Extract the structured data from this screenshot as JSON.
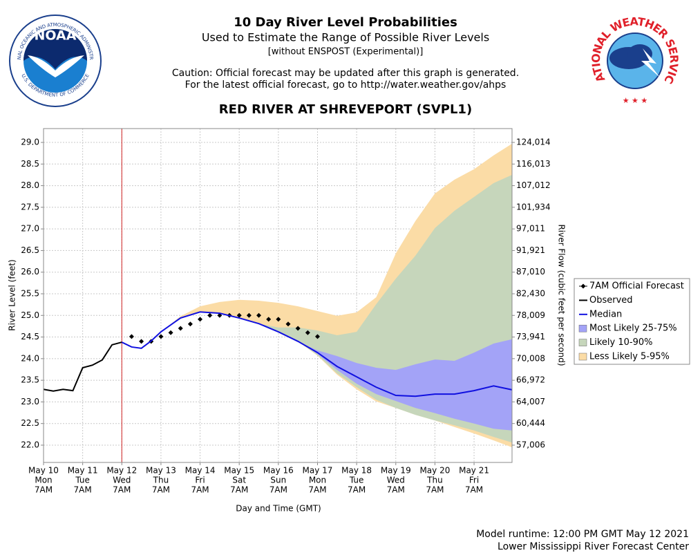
{
  "header": {
    "title": "10 Day River Level Probabilities",
    "subtitle": "Used to Estimate the Range of Possible River Levels",
    "note": "[without ENSPOST (Experimental)]",
    "caution": [
      "Caution: Official forecast may be updated after this graph is generated.",
      "For the latest official forecast, go to http://water.weather.gov/ahps"
    ]
  },
  "logos": {
    "noaa": "NOAA",
    "noaa_ring_top": "NATIONAL OCEANIC AND ATMOSPHERIC ADMINISTRATION",
    "noaa_ring_bottom": "U.S. DEPARTMENT OF COMMERCE",
    "nws": "NATIONAL WEATHER SERVICE"
  },
  "footer": [
    "Model runtime: 12:00 PM GMT May 12 2021",
    "Lower Mississippi River Forecast Center"
  ],
  "chart_data": {
    "type": "line",
    "title": "RED RIVER AT SHREVEPORT (SVPL1)",
    "xlabel": "Day and Time (GMT)",
    "ylabel": "River Level (feet)",
    "y2label": "River Flow (cubic feet per second)",
    "xlim": [
      0,
      11.97
    ],
    "ylim": [
      21.6,
      29.32
    ],
    "grid": true,
    "xticks": [
      0,
      1,
      2,
      3,
      4,
      5,
      6,
      7,
      8,
      9,
      10,
      11
    ],
    "xtick_labels": [
      [
        "May 10",
        "Mon",
        "7AM"
      ],
      [
        "May 11",
        "Tue",
        "7AM"
      ],
      [
        "May 12",
        "Wed",
        "7AM"
      ],
      [
        "May 13",
        "Thu",
        "7AM"
      ],
      [
        "May 14",
        "Fri",
        "7AM"
      ],
      [
        "May 15",
        "Sat",
        "7AM"
      ],
      [
        "May 16",
        "Sun",
        "7AM"
      ],
      [
        "May 17",
        "Mon",
        "7AM"
      ],
      [
        "May 18",
        "Tue",
        "7AM"
      ],
      [
        "May 19",
        "Wed",
        "7AM"
      ],
      [
        "May 20",
        "Thu",
        "7AM"
      ],
      [
        "May 21",
        "Fri",
        "7AM"
      ]
    ],
    "yticks": [
      {
        "value": 22,
        "label": "22.0"
      },
      22.5,
      {
        "value": 23,
        "label": "23.0"
      },
      23.5,
      {
        "value": 24,
        "label": "24.0"
      },
      24.5,
      {
        "value": 25,
        "label": "25.0"
      },
      25.5,
      {
        "value": 26,
        "label": "26.0"
      },
      26.5,
      {
        "value": 27,
        "label": "27.0"
      },
      27.5,
      {
        "value": 28,
        "label": "28.0"
      },
      28.5,
      {
        "value": 29,
        "label": "29.0"
      }
    ],
    "y2tick_stages": [
      22,
      22.5,
      23,
      23.5,
      24,
      24.5,
      25,
      25.5,
      26,
      26.5,
      27,
      27.5,
      28,
      28.5,
      29
    ],
    "y2ticks": [
      {
        "value": 57006,
        "label": "57,006"
      },
      {
        "value": 60444,
        "label": "60,444"
      },
      {
        "value": 64007,
        "label": "64,007"
      },
      {
        "value": 66972,
        "label": "66,972"
      },
      {
        "value": 70008,
        "label": "70,008"
      },
      {
        "value": 73941,
        "label": "73,941"
      },
      {
        "value": 78009,
        "label": "78,009"
      },
      {
        "value": 82430,
        "label": "82,430"
      },
      {
        "value": 87010,
        "label": "87,010"
      },
      {
        "value": 91921,
        "label": "91,921"
      },
      {
        "value": 97011,
        "label": "97,011"
      },
      {
        "value": 101934,
        "label": "101,934"
      },
      {
        "value": 107012,
        "label": "107,012"
      },
      {
        "value": 116013,
        "label": "116,013"
      },
      {
        "value": 124014,
        "label": "124,014"
      }
    ],
    "now_line": {
      "x": 2,
      "color": "#d02020"
    },
    "series": [
      {
        "name": "7AM Official Forecast",
        "color": "#000000",
        "marker": "diamond",
        "x": [
          2.25,
          2.5,
          2.75,
          3,
          3.25,
          3.5,
          3.75,
          4,
          4.25,
          4.5,
          4.75,
          5,
          5.25,
          5.5,
          5.75,
          6,
          6.25,
          6.5,
          6.75,
          7
        ],
        "values": [
          24.51,
          24.4,
          24.4,
          24.51,
          24.6,
          24.7,
          24.8,
          24.91,
          25.0,
          25.0,
          25.0,
          25.0,
          25.0,
          25.0,
          24.91,
          24.91,
          24.8,
          24.7,
          24.6,
          24.51
        ]
      },
      {
        "name": "Observed",
        "color": "#000000",
        "x": [
          0,
          0.25,
          0.5,
          0.75,
          1,
          1.25,
          1.5,
          1.75,
          2
        ],
        "values": [
          23.29,
          23.25,
          23.29,
          23.26,
          23.79,
          23.85,
          23.97,
          24.32,
          24.38
        ]
      },
      {
        "name": "Median",
        "color": "#1010e0",
        "x": [
          2,
          2.25,
          2.5,
          2.75,
          3,
          3.5,
          4,
          4.5,
          5,
          5.5,
          6,
          6.5,
          7,
          7.5,
          8,
          8.5,
          9,
          9.5,
          10,
          10.5,
          11,
          11.5,
          11.97
        ],
        "values": [
          24.38,
          24.27,
          24.24,
          24.41,
          24.62,
          24.94,
          25.08,
          25.05,
          24.94,
          24.81,
          24.62,
          24.4,
          24.14,
          23.82,
          23.58,
          23.34,
          23.15,
          23.13,
          23.18,
          23.18,
          23.26,
          23.37,
          23.28
        ]
      }
    ],
    "band_x": [
      2,
      2.25,
      2.5,
      2.75,
      3,
      3.5,
      4,
      4.5,
      5,
      5.5,
      6,
      6.5,
      7,
      7.5,
      8,
      8.5,
      9,
      9.5,
      10,
      10.5,
      11,
      11.5,
      11.97
    ],
    "bands": [
      {
        "name": "Most Likely 25-75%",
        "color": "#a3a3f7",
        "upper": [
          24.38,
          24.27,
          24.24,
          24.41,
          24.62,
          24.94,
          25.08,
          25.05,
          24.94,
          24.81,
          24.62,
          24.4,
          24.19,
          24.06,
          23.9,
          23.79,
          23.74,
          23.87,
          23.98,
          23.95,
          24.14,
          24.35,
          24.45
        ],
        "lower": [
          24.38,
          24.27,
          24.24,
          24.41,
          24.62,
          24.94,
          25.08,
          25.05,
          24.94,
          24.81,
          24.62,
          24.4,
          24.11,
          23.74,
          23.42,
          23.18,
          23.02,
          22.86,
          22.74,
          22.61,
          22.5,
          22.38,
          22.34
        ]
      },
      {
        "name": "Likely 10-90%",
        "color": "#c6d6bb",
        "upper": [
          24.38,
          24.27,
          24.24,
          24.41,
          24.62,
          24.94,
          25.08,
          25.05,
          24.94,
          24.81,
          24.72,
          24.72,
          24.65,
          24.54,
          24.62,
          25.26,
          25.85,
          26.38,
          27.02,
          27.42,
          27.74,
          28.06,
          28.25
        ],
        "lower": [
          24.38,
          24.27,
          24.24,
          24.41,
          24.62,
          24.94,
          25.08,
          25.05,
          24.94,
          24.81,
          24.62,
          24.4,
          24.08,
          23.66,
          23.34,
          23.05,
          22.86,
          22.7,
          22.57,
          22.46,
          22.34,
          22.19,
          22.06
        ]
      },
      {
        "name": "Less Likely 5-95%",
        "color": "#fbdca6",
        "upper": [
          24.38,
          24.27,
          24.24,
          24.41,
          24.62,
          24.98,
          25.21,
          25.31,
          25.36,
          25.34,
          25.29,
          25.21,
          25.1,
          24.99,
          25.07,
          25.42,
          26.43,
          27.18,
          27.82,
          28.14,
          28.38,
          28.7,
          28.97
        ],
        "lower": [
          24.38,
          24.27,
          24.24,
          24.41,
          24.62,
          24.94,
          25.08,
          25.05,
          24.94,
          24.81,
          24.62,
          24.4,
          24.07,
          23.63,
          23.29,
          23.01,
          22.86,
          22.7,
          22.57,
          22.42,
          22.27,
          22.11,
          21.95
        ]
      }
    ]
  }
}
